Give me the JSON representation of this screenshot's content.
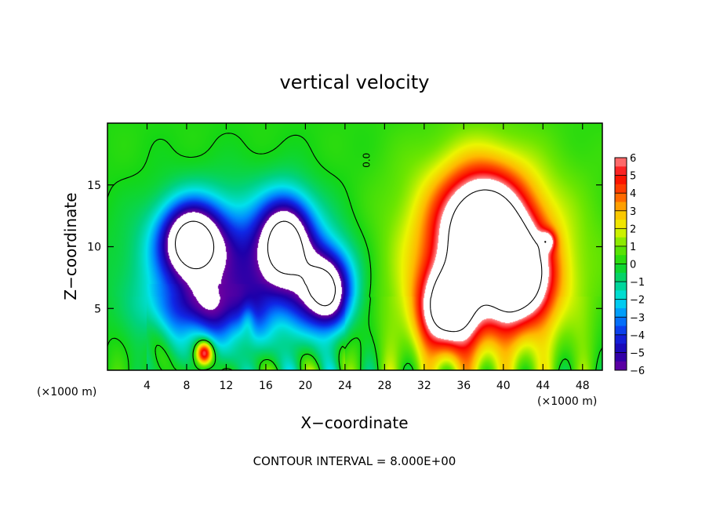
{
  "chart_data": {
    "type": "heatmap",
    "title": "vertical velocity",
    "xlabel": "X−coordinate",
    "ylabel": "Z−coordinate",
    "x_unit": "(×1000 m)",
    "z_unit": "(×1000 m)",
    "xlim": [
      0,
      50
    ],
    "ylim": [
      0,
      20
    ],
    "x_ticks": [
      4,
      8,
      12,
      16,
      20,
      24,
      28,
      32,
      36,
      40,
      44,
      48
    ],
    "x_tick_labels": [
      "4",
      "8",
      "12",
      "16",
      "20",
      "24",
      "28",
      "32",
      "36",
      "40",
      "44",
      "48"
    ],
    "y_ticks": [
      5,
      10,
      15
    ],
    "y_tick_labels": [
      "5",
      "10",
      "15"
    ],
    "colorbar": {
      "min": -6,
      "max": 6,
      "ticks": [
        6,
        5,
        4,
        3,
        2,
        1,
        0,
        -1,
        -2,
        -3,
        -4,
        -5,
        -6
      ],
      "tick_labels": [
        "6",
        "5",
        "4",
        "3",
        "2",
        "1",
        "0",
        "−1",
        "−2",
        "−3",
        "−4",
        "−5",
        "−6"
      ]
    },
    "contour_label": "0.0",
    "footer": "CONTOUR INTERVAL = 8.000E+00",
    "features": [
      {
        "kind": "downdraft",
        "x": 8.5,
        "z": 10.5,
        "rx": 3.0,
        "rz": 3.0,
        "amp": -8.0
      },
      {
        "kind": "downdraft",
        "x": 18.0,
        "z": 10.5,
        "rx": 2.6,
        "rz": 3.4,
        "amp": -7.5
      },
      {
        "kind": "downdraft",
        "x": 22.0,
        "z": 6.5,
        "rx": 2.5,
        "rz": 3.0,
        "amp": -8.0
      },
      {
        "kind": "downdraft",
        "x": 13.5,
        "z": 8.0,
        "rx": 9.0,
        "rz": 5.5,
        "amp": -4.6
      },
      {
        "kind": "downdraft",
        "x": 10.0,
        "z": 5.0,
        "rx": 5.0,
        "rz": 2.2,
        "amp": -2.8
      },
      {
        "kind": "updraft",
        "x": 38.0,
        "z": 11.5,
        "rx": 4.2,
        "rz": 4.4,
        "amp": 9.0
      },
      {
        "kind": "updraft",
        "x": 41.5,
        "z": 7.5,
        "rx": 3.2,
        "rz": 3.5,
        "amp": 8.0
      },
      {
        "kind": "updraft",
        "x": 34.5,
        "z": 5.0,
        "rx": 2.8,
        "rz": 3.2,
        "amp": 8.0
      },
      {
        "kind": "updraft",
        "x": 38.0,
        "z": 8.5,
        "rx": 8.5,
        "rz": 8.0,
        "amp": 4.2
      },
      {
        "kind": "updraft",
        "x": 9.8,
        "z": 1.4,
        "rx": 0.8,
        "rz": 0.9,
        "amp": 6.0
      },
      {
        "kind": "updraft",
        "x": 14.2,
        "z": 4.2,
        "rx": 0.7,
        "rz": 1.4,
        "amp": 1.5
      },
      {
        "kind": "updraft",
        "x": 44.5,
        "z": 10.5,
        "rx": 0.8,
        "rz": 0.8,
        "amp": 3.0
      }
    ]
  }
}
